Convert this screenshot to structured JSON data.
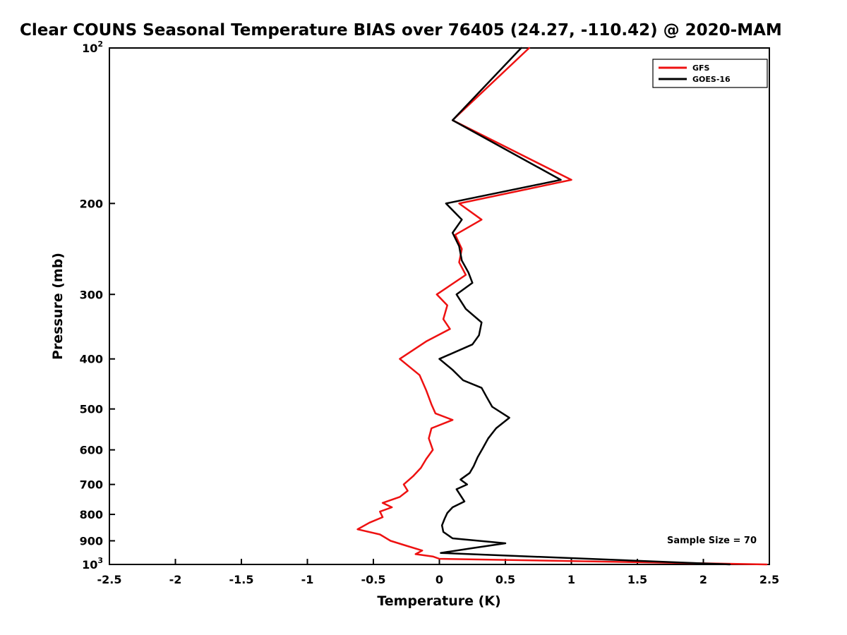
{
  "annotation": "Sample Size = 70",
  "chart_data": {
    "type": "line",
    "title": "Clear COUNS Seasonal Temperature BIAS over 76405 (24.27, -110.42) @ 2020-MAM",
    "xlabel": "Temperature (K)",
    "ylabel": "Pressure (mb)",
    "x_range": [
      -2.5,
      2.5
    ],
    "pressure_range": [
      100,
      1000
    ],
    "y_scale": "log",
    "grid": false,
    "xticks": [
      -2.5,
      -2,
      -1.5,
      -1,
      -0.5,
      0,
      0.5,
      1,
      1.5,
      2,
      2.5
    ],
    "xtick_labels": [
      "-2.5",
      "-2",
      "-1.5",
      "-1",
      "-0.5",
      "0",
      "0.5",
      "1",
      "1.5",
      "2",
      "2.5"
    ],
    "yticks": [
      100,
      200,
      300,
      400,
      500,
      600,
      700,
      800,
      900,
      1000
    ],
    "ytick_labels": [
      "10^2",
      "200",
      "300",
      "400",
      "500",
      "600",
      "700",
      "800",
      "900",
      "10^3"
    ],
    "legend": {
      "position": "top-right",
      "entries": [
        {
          "label": "GFS",
          "color": "#ee1111"
        },
        {
          "label": "GOES-16",
          "color": "#000000"
        }
      ]
    },
    "series": [
      {
        "name": "GFS",
        "color": "#ee1111",
        "points": [
          [
            100,
            0.68
          ],
          [
            138,
            0.1
          ],
          [
            180,
            1.0
          ],
          [
            200,
            0.15
          ],
          [
            215,
            0.32
          ],
          [
            230,
            0.12
          ],
          [
            245,
            0.17
          ],
          [
            260,
            0.15
          ],
          [
            275,
            0.2
          ],
          [
            300,
            -0.02
          ],
          [
            315,
            0.06
          ],
          [
            335,
            0.03
          ],
          [
            350,
            0.08
          ],
          [
            370,
            -0.1
          ],
          [
            400,
            -0.3
          ],
          [
            430,
            -0.15
          ],
          [
            460,
            -0.1
          ],
          [
            490,
            -0.06
          ],
          [
            510,
            -0.03
          ],
          [
            525,
            0.1
          ],
          [
            545,
            -0.06
          ],
          [
            570,
            -0.08
          ],
          [
            600,
            -0.05
          ],
          [
            625,
            -0.1
          ],
          [
            650,
            -0.14
          ],
          [
            675,
            -0.2
          ],
          [
            700,
            -0.27
          ],
          [
            720,
            -0.24
          ],
          [
            740,
            -0.3
          ],
          [
            760,
            -0.43
          ],
          [
            775,
            -0.36
          ],
          [
            790,
            -0.45
          ],
          [
            810,
            -0.43
          ],
          [
            830,
            -0.53
          ],
          [
            855,
            -0.62
          ],
          [
            875,
            -0.45
          ],
          [
            900,
            -0.37
          ],
          [
            920,
            -0.25
          ],
          [
            940,
            -0.13
          ],
          [
            955,
            -0.18
          ],
          [
            965,
            -0.05
          ],
          [
            975,
            0.0
          ],
          [
            1000,
            2.48
          ]
        ]
      },
      {
        "name": "GOES-16",
        "color": "#000000",
        "points": [
          [
            100,
            0.62
          ],
          [
            138,
            0.1
          ],
          [
            180,
            0.92
          ],
          [
            200,
            0.05
          ],
          [
            215,
            0.17
          ],
          [
            228,
            0.1
          ],
          [
            242,
            0.15
          ],
          [
            258,
            0.17
          ],
          [
            272,
            0.22
          ],
          [
            285,
            0.25
          ],
          [
            300,
            0.13
          ],
          [
            320,
            0.2
          ],
          [
            340,
            0.32
          ],
          [
            360,
            0.3
          ],
          [
            375,
            0.25
          ],
          [
            400,
            0.0
          ],
          [
            420,
            0.1
          ],
          [
            440,
            0.18
          ],
          [
            455,
            0.32
          ],
          [
            475,
            0.36
          ],
          [
            495,
            0.4
          ],
          [
            520,
            0.53
          ],
          [
            545,
            0.43
          ],
          [
            570,
            0.37
          ],
          [
            595,
            0.33
          ],
          [
            620,
            0.29
          ],
          [
            645,
            0.26
          ],
          [
            665,
            0.23
          ],
          [
            685,
            0.16
          ],
          [
            700,
            0.21
          ],
          [
            715,
            0.13
          ],
          [
            735,
            0.16
          ],
          [
            755,
            0.19
          ],
          [
            775,
            0.1
          ],
          [
            795,
            0.06
          ],
          [
            815,
            0.04
          ],
          [
            840,
            0.02
          ],
          [
            865,
            0.03
          ],
          [
            890,
            0.1
          ],
          [
            910,
            0.5
          ],
          [
            930,
            0.25
          ],
          [
            950,
            0.01
          ],
          [
            1000,
            2.2
          ]
        ]
      }
    ]
  }
}
